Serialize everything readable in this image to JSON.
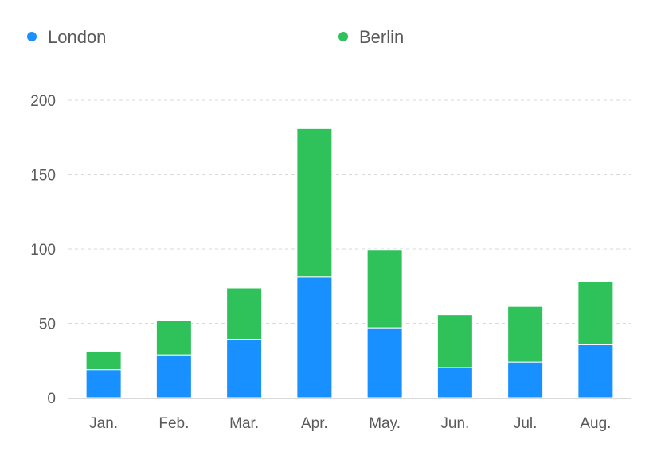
{
  "chart_data": {
    "type": "bar",
    "stacked": true,
    "categories": [
      "Jan.",
      "Feb.",
      "Mar.",
      "Apr.",
      "May.",
      "Jun.",
      "Jul.",
      "Aug."
    ],
    "series": [
      {
        "name": "London",
        "color": "#1890ff",
        "values": [
          18.9,
          28.8,
          39.3,
          81.4,
          47,
          20.3,
          24,
          35.6
        ]
      },
      {
        "name": "Berlin",
        "color": "#2fc25b",
        "values": [
          12.4,
          23.2,
          34.5,
          99.7,
          52.6,
          35.5,
          37.4,
          42.4
        ]
      }
    ],
    "y_ticks": [
      "0",
      "50",
      "100",
      "150",
      "200"
    ],
    "ylim": [
      0,
      200
    ],
    "title": "",
    "xlabel": "",
    "ylabel": "",
    "grid": true,
    "legend_position": "top-left"
  }
}
